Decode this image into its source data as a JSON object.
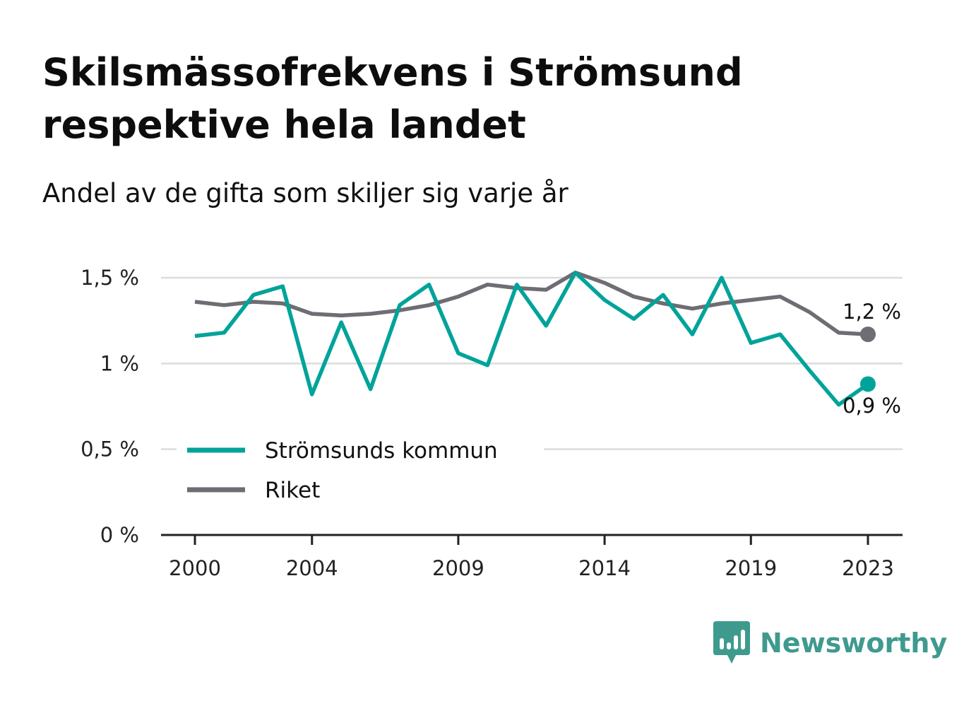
{
  "title_line1": "Skilsmässofrekvens i Strömsund",
  "title_line2": "respektive hela landet",
  "subtitle": "Andel av de gifta som skiljer sig varje år",
  "brand": {
    "name": "Newsworthy",
    "icon": "newsworthy-logo-icon",
    "color": "#3f9a8e"
  },
  "chart_data": {
    "type": "line",
    "x": [
      2000,
      2001,
      2002,
      2003,
      2004,
      2005,
      2006,
      2007,
      2008,
      2009,
      2010,
      2011,
      2012,
      2013,
      2014,
      2015,
      2016,
      2017,
      2018,
      2019,
      2020,
      2021,
      2022,
      2023
    ],
    "x_ticks": [
      2000,
      2004,
      2009,
      2014,
      2019,
      2023
    ],
    "x_tick_labels": [
      "2000",
      "2004",
      "2009",
      "2014",
      "2019",
      "2023"
    ],
    "ylim": [
      0,
      1.5
    ],
    "y_ticks": [
      0,
      0.5,
      1,
      1.5
    ],
    "y_tick_labels": [
      "0 %",
      "0,5 %",
      "1 %",
      "1,5 %"
    ],
    "grid": true,
    "legend_position": "bottom-left",
    "series": [
      {
        "name": "Strömsunds kommun",
        "color": "#00a39a",
        "values": [
          1.16,
          1.18,
          1.4,
          1.45,
          0.82,
          1.24,
          0.85,
          1.34,
          1.46,
          1.06,
          0.99,
          1.46,
          1.22,
          1.53,
          1.37,
          1.26,
          1.4,
          1.17,
          1.5,
          1.12,
          1.17,
          0.96,
          0.76,
          0.88
        ],
        "end_label": "0,9 %"
      },
      {
        "name": "Riket",
        "color": "#6e6d73",
        "values": [
          1.36,
          1.34,
          1.36,
          1.35,
          1.29,
          1.28,
          1.29,
          1.31,
          1.34,
          1.39,
          1.46,
          1.44,
          1.43,
          1.53,
          1.47,
          1.39,
          1.35,
          1.32,
          1.35,
          1.37,
          1.39,
          1.3,
          1.18,
          1.17
        ],
        "end_label": "1,2 %"
      }
    ]
  }
}
